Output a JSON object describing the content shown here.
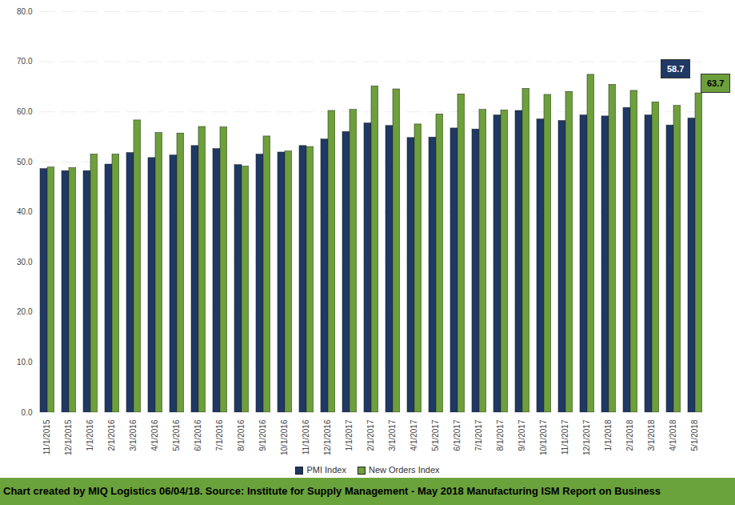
{
  "chart_data": {
    "type": "bar",
    "categories": [
      "11/1/2015",
      "12/1/2015",
      "1/1/2016",
      "2/1/2016",
      "3/1/2016",
      "4/1/2016",
      "5/1/2016",
      "6/1/2016",
      "7/1/2016",
      "8/1/2016",
      "9/1/2016",
      "10/1/2016",
      "11/1/2016",
      "12/1/2016",
      "1/1/2017",
      "2/1/2017",
      "3/1/2017",
      "4/1/2017",
      "5/1/2017",
      "6/1/2017",
      "7/1/2017",
      "8/1/2017",
      "9/1/2017",
      "10/1/2017",
      "11/1/2017",
      "12/1/2017",
      "1/1/2018",
      "2/1/2018",
      "3/1/2018",
      "4/1/2018",
      "5/1/2018"
    ],
    "series": [
      {
        "name": "PMI Index",
        "color": "#1f3864",
        "values": [
          48.6,
          48.2,
          48.2,
          49.5,
          51.8,
          50.8,
          51.3,
          53.2,
          52.6,
          49.4,
          51.5,
          51.9,
          53.2,
          54.5,
          56.0,
          57.7,
          57.2,
          54.8,
          54.9,
          56.7,
          56.5,
          59.3,
          60.2,
          58.5,
          58.2,
          59.3,
          59.1,
          60.8,
          59.3,
          57.3,
          58.7
        ]
      },
      {
        "name": "New Orders Index",
        "color": "#6d9f3c",
        "values": [
          48.9,
          48.8,
          51.5,
          51.5,
          58.3,
          55.8,
          55.7,
          57.0,
          56.9,
          49.1,
          55.1,
          52.1,
          53.0,
          60.2,
          60.4,
          65.1,
          64.5,
          57.5,
          59.5,
          63.5,
          60.4,
          60.3,
          64.6,
          63.4,
          64.0,
          67.4,
          65.4,
          64.2,
          61.9,
          61.2,
          63.7
        ]
      }
    ],
    "ylim": [
      0,
      80
    ],
    "yticks": [
      {
        "value": 0,
        "label": "0.0"
      },
      {
        "value": 10,
        "label": "10.0"
      },
      {
        "value": 20,
        "label": "20.0"
      },
      {
        "value": 30,
        "label": "30.0"
      },
      {
        "value": 40,
        "label": "40.0"
      },
      {
        "value": 50,
        "label": "50.0"
      },
      {
        "value": 60,
        "label": "60.0"
      },
      {
        "value": 70,
        "label": "70.0"
      },
      {
        "value": 80,
        "label": "80.0"
      }
    ],
    "grid": true,
    "legend": "bottom",
    "annotations": [
      {
        "text": "58.7",
        "series": "PMI Index",
        "category": "5/1/2018"
      },
      {
        "text": "63.7",
        "series": "New Orders Index",
        "category": "5/1/2018"
      }
    ],
    "footer": "Chart created by MIQ Logistics 06/04/18. Source: Institute for Supply Management - May 2018 Manufacturing ISM Report on Business"
  }
}
